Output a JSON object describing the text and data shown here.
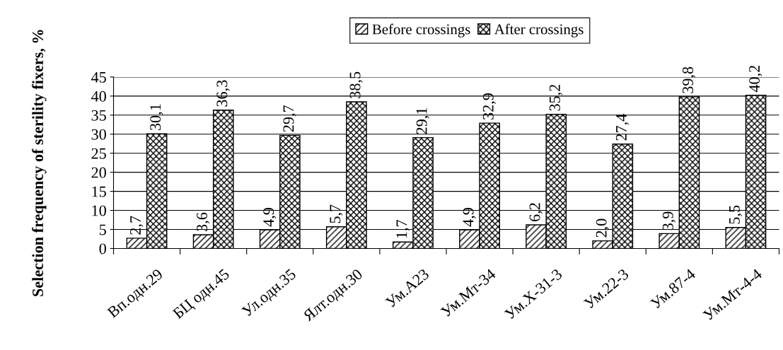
{
  "chart_data": {
    "type": "bar",
    "ylabel": "Selection frequency of sterility fixers, %",
    "categories": [
      "Вп.одн.29",
      "БЦ одн.45",
      "Ул.одн.35",
      "Ялт.одн.30",
      "Ум.А23",
      "Ум.Мт-34",
      "Ум.Х-31-3",
      "Ум.22-3",
      "Ум.87-4",
      "Ум.Мт-4-4"
    ],
    "series": [
      {
        "name": "Before crossings",
        "color": "#000000",
        "values": [
          2.7,
          3.6,
          4.9,
          5.7,
          1.7,
          4.9,
          6.2,
          2.0,
          3.9,
          5.5
        ],
        "value_labels": [
          "2,7",
          "3,6",
          "4,9",
          "5,7",
          "1,7",
          "4,9",
          "6,2",
          "2,0",
          "3,9",
          "5,5"
        ]
      },
      {
        "name": "After crossings",
        "color": "#000000",
        "values": [
          30.1,
          36.3,
          29.7,
          38.5,
          29.1,
          32.9,
          35.2,
          27.4,
          39.8,
          40.2
        ],
        "value_labels": [
          "30,1",
          "36,3",
          "29,7",
          "38,5",
          "29,1",
          "32,9",
          "35,2",
          "27,4",
          "39,8",
          "40,2"
        ]
      }
    ],
    "ylim": [
      0,
      45
    ],
    "yticks": [
      0,
      5,
      10,
      15,
      20,
      25,
      30,
      35,
      40,
      45
    ],
    "grid": "y",
    "legend": "top"
  }
}
